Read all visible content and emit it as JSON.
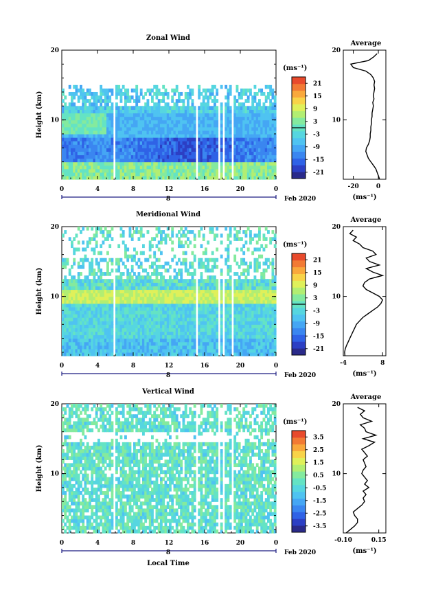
{
  "colors": {
    "palette": [
      "#2a2a8a",
      "#2c3fc4",
      "#2f62e6",
      "#3a86f0",
      "#45a6f4",
      "#4fc3f1",
      "#56d6e0",
      "#64e3c4",
      "#84ea9e",
      "#b2ee72",
      "#dff05a",
      "#f8d348",
      "#f9a83c",
      "#f27a34",
      "#e84a2c"
    ],
    "zero_line": "#000000",
    "blank": "#ffffff"
  },
  "date_label": "Feb 2020",
  "day_label": "8",
  "time_axis_label": "Local Time",
  "unit_label": "(ms⁻¹)",
  "chart_data": [
    {
      "type": "heatmap",
      "title": "Zonal Wind",
      "ylabel": "Height (km)",
      "xticks": [
        "0",
        "4",
        "8",
        "12",
        "16",
        "20",
        "0"
      ],
      "yticks": [
        "10",
        "20"
      ],
      "xlim": [
        0,
        24
      ],
      "ylim": [
        1.5,
        20
      ],
      "colorbar": {
        "unit": "(ms⁻¹)",
        "ticks": [
          "21",
          "15",
          "9",
          "3",
          "-3",
          "-9",
          "-15",
          "-21"
        ],
        "range": [
          -24,
          24
        ],
        "zero_line": 0
      },
      "data_gaps_hours": [
        [
          5.8,
          6.1
        ],
        [
          15.0,
          15.3
        ],
        [
          17.5,
          17.7
        ],
        [
          18.1,
          18.3
        ],
        [
          19.1,
          19.3
        ]
      ],
      "profile": {
        "title": "Average",
        "xlabel": "(ms⁻¹)",
        "xticks": [
          "-20",
          "0"
        ],
        "yticks": [
          "10",
          "20"
        ],
        "xlim": [
          -28,
          6
        ],
        "heights": [
          1.5,
          2,
          2.5,
          3,
          3.5,
          4,
          4.5,
          5,
          5.5,
          6,
          6.5,
          7,
          7.5,
          8,
          8.5,
          9,
          9.5,
          10,
          10.5,
          11,
          11.5,
          12,
          12.5,
          13,
          13.5,
          14,
          14.5,
          15,
          15.5,
          16,
          16.5,
          17,
          17.5,
          18,
          18.5,
          19,
          19.5
        ],
        "values": [
          1,
          0,
          -1,
          -2,
          -4,
          -6,
          -8,
          -9,
          -10,
          -9.5,
          -8,
          -7,
          -6.5,
          -6.5,
          -6,
          -6,
          -5.5,
          -5.5,
          -5,
          -5,
          -4.5,
          -4,
          -4.5,
          -3.5,
          -4,
          -3.5,
          -3,
          -3.5,
          -3,
          -4,
          -6,
          -10,
          -20,
          -22,
          -8,
          -4,
          -1
        ]
      }
    },
    {
      "type": "heatmap",
      "title": "Meridional Wind",
      "ylabel": "Height (km)",
      "xticks": [
        "0",
        "4",
        "8",
        "12",
        "16",
        "20",
        "0"
      ],
      "yticks": [
        "10",
        "20"
      ],
      "xlim": [
        0,
        24
      ],
      "ylim": [
        1.5,
        20
      ],
      "colorbar": {
        "unit": "(ms⁻¹)",
        "ticks": [
          "21",
          "15",
          "9",
          "3",
          "-3",
          "-9",
          "-15",
          "-21"
        ],
        "range": [
          -24,
          24
        ],
        "zero_line": 0
      },
      "data_gaps_hours": [
        [
          5.8,
          6.1
        ],
        [
          15.0,
          15.3
        ],
        [
          17.5,
          17.7
        ],
        [
          18.1,
          18.3
        ],
        [
          19.1,
          19.3
        ]
      ],
      "profile": {
        "title": "Average",
        "xlabel": "(ms⁻¹)",
        "xticks": [
          "-4",
          "8"
        ],
        "yticks": [
          "10",
          "20"
        ],
        "xlim": [
          -4,
          9
        ],
        "heights": [
          1.5,
          2,
          2.5,
          3,
          3.5,
          4,
          4.5,
          5,
          5.5,
          6,
          6.5,
          7,
          7.5,
          8,
          8.5,
          9,
          9.5,
          10,
          10.5,
          11,
          11.5,
          12,
          12.5,
          13,
          13.5,
          14,
          14.5,
          15,
          15.5,
          16,
          16.5,
          17,
          17.5,
          18,
          18.5,
          19,
          19.5
        ],
        "values": [
          -3.5,
          -3.6,
          -3.4,
          -3,
          -2.5,
          -2,
          -1.5,
          -1,
          -0.5,
          0,
          1,
          2,
          3.5,
          5,
          6.5,
          7.5,
          8,
          7,
          5,
          3,
          2,
          2.5,
          4,
          8,
          5,
          3,
          7,
          4,
          3,
          6,
          5,
          2,
          1,
          -1,
          0,
          -2,
          -1
        ]
      }
    },
    {
      "type": "heatmap",
      "title": "Vertical Wind",
      "ylabel": "Height (km)",
      "xlabel": "Local Time",
      "xticks": [
        "0",
        "4",
        "8",
        "12",
        "16",
        "20",
        "0"
      ],
      "yticks": [
        "10",
        "20"
      ],
      "xlim": [
        0,
        24
      ],
      "ylim": [
        1.5,
        20
      ],
      "colorbar": {
        "unit": "(ms⁻¹)",
        "ticks": [
          "3.5",
          "2.5",
          "1.5",
          "0.5",
          "-0.5",
          "-1.5",
          "-2.5",
          "-3.5"
        ],
        "range": [
          -4,
          4
        ]
      },
      "data_gaps_hours": [
        [
          5.8,
          6.1
        ],
        [
          15.0,
          15.3
        ],
        [
          17.5,
          17.7
        ],
        [
          18.1,
          18.3
        ],
        [
          19.1,
          19.3
        ]
      ],
      "profile": {
        "title": "Average",
        "xlabel": "(ms⁻¹)",
        "xticks": [
          "-0.10",
          "0.15"
        ],
        "yticks": [
          "10",
          "20"
        ],
        "xlim": [
          -0.1,
          0.2
        ],
        "heights": [
          1.5,
          2,
          2.5,
          3,
          3.5,
          4,
          4.5,
          5,
          5.5,
          6,
          6.5,
          7,
          7.5,
          8,
          8.5,
          9,
          9.5,
          10,
          10.5,
          11,
          11.5,
          12,
          12.5,
          13,
          13.5,
          14,
          14.5,
          15,
          15.5,
          16,
          16.5,
          17,
          17.5,
          18,
          18.5,
          19,
          19.5
        ],
        "values": [
          -0.08,
          -0.05,
          -0.02,
          0.0,
          0.0,
          -0.02,
          -0.03,
          0.0,
          0.03,
          0.05,
          0.04,
          0.06,
          0.04,
          0.08,
          0.05,
          0.07,
          0.05,
          0.03,
          0.04,
          0.06,
          0.05,
          0.04,
          0.07,
          0.05,
          0.03,
          0.08,
          0.12,
          0.04,
          0.13,
          0.06,
          0.05,
          0.02,
          0.1,
          0.04,
          0.02,
          0.05,
          0.0
        ]
      }
    }
  ]
}
